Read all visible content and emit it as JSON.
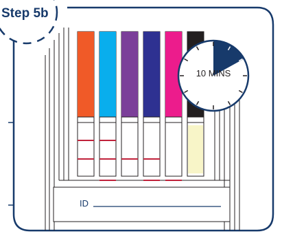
{
  "step": {
    "label": "Step 5b"
  },
  "timer": {
    "label": "10 MINS",
    "fraction_elapsed": 0.17
  },
  "id_field": {
    "label": "ID"
  },
  "colors": {
    "navy": "#173a6b",
    "line_red": "#c0223b",
    "control_fill": "#f8f5c8"
  },
  "strips": [
    {
      "color": "#f05a28",
      "lines": [
        true,
        true,
        false
      ]
    },
    {
      "color": "#09aeed",
      "lines": [
        true,
        true,
        true
      ]
    },
    {
      "color": "#7b3f99",
      "lines": [
        false,
        true,
        false
      ]
    },
    {
      "color": "#2e3191",
      "lines": [
        false,
        true,
        true
      ]
    },
    {
      "color": "#ec1c8c",
      "lines": [
        false,
        false,
        true
      ]
    },
    {
      "color": "#231f20",
      "lines": [
        false,
        false,
        false
      ],
      "pad_fill": true
    }
  ]
}
